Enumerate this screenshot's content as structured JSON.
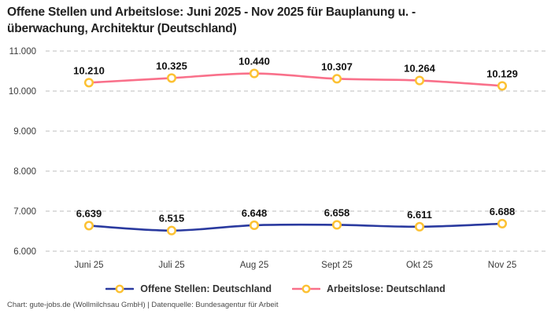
{
  "title": {
    "line1": "Offene Stellen und Arbeitslose: Juni 2025 - Nov 2025 für Bauplanung u. -",
    "line2": "überwachung, Architektur (Deutschland)"
  },
  "footer": {
    "text": "Chart: gute-jobs.de (Wollmilchsau GmbH) | Datenquelle: Bundesagentur für Arbeit"
  },
  "chart_data": {
    "type": "line",
    "title": "Offene Stellen und Arbeitslose: Juni 2025 - Nov 2025 für Bauplanung u. -überwachung, Architektur (Deutschland)",
    "categories": [
      "Juni 25",
      "Juli 25",
      "Aug 25",
      "Sept 25",
      "Okt 25",
      "Nov 25"
    ],
    "series": [
      {
        "name": "Offene Stellen: Deutschland",
        "color": "#2A3A9F",
        "values": [
          6639,
          6515,
          6648,
          6658,
          6611,
          6688
        ],
        "labels": [
          "6.639",
          "6.515",
          "6.648",
          "6.658",
          "6.611",
          "6.688"
        ]
      },
      {
        "name": "Arbeitslose: Deutschland",
        "color": "#F9708A",
        "values": [
          10210,
          10325,
          10440,
          10307,
          10264,
          10129
        ],
        "labels": [
          "10.210",
          "10.325",
          "10.440",
          "10.307",
          "10.264",
          "10.129"
        ]
      }
    ],
    "marker": {
      "fill": "#FFFFFF",
      "stroke": "#FCC133"
    },
    "ylim": [
      6000,
      11000
    ],
    "yticks": [
      6000,
      7000,
      8000,
      9000,
      10000,
      11000
    ],
    "ytick_labels": [
      "6.000",
      "7.000",
      "8.000",
      "9.000",
      "10.000",
      "11.000"
    ],
    "xlabel": "",
    "ylabel": "",
    "grid": "horizontal-dashed",
    "legend_position": "bottom",
    "colors": {
      "grid": "#CBCBCB",
      "tick": "#3A3A3A",
      "data_label": "#111111"
    }
  }
}
